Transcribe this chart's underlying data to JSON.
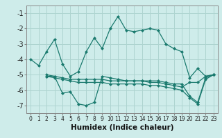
{
  "xlabel": "Humidex (Indice chaleur)",
  "background_color": "#ceecea",
  "grid_color": "#aed4d0",
  "line_color": "#1a7a6e",
  "xlim": [
    -0.5,
    23.5
  ],
  "ylim": [
    -7.5,
    -0.5
  ],
  "yticks": [
    -7,
    -6,
    -5,
    -4,
    -3,
    -2,
    -1
  ],
  "xticks": [
    0,
    1,
    2,
    3,
    4,
    5,
    6,
    7,
    8,
    9,
    10,
    11,
    12,
    13,
    14,
    15,
    16,
    17,
    18,
    19,
    20,
    21,
    22,
    23
  ],
  "line_main": {
    "x": [
      0,
      1,
      2,
      3,
      4,
      5,
      6,
      7,
      8,
      9,
      10,
      11,
      12,
      13,
      14,
      15,
      16,
      17,
      18,
      19,
      20,
      21,
      22,
      23
    ],
    "y": [
      -4.0,
      -4.4,
      -3.5,
      -2.7,
      -4.3,
      -5.1,
      -4.8,
      -3.5,
      -2.6,
      -3.3,
      -2.0,
      -1.2,
      -2.1,
      -2.2,
      -2.1,
      -2.0,
      -2.1,
      -3.0,
      -3.3,
      -3.5,
      -5.2,
      -4.6,
      -5.1,
      -5.0
    ]
  },
  "line_v": {
    "x": [
      2,
      3,
      4,
      5,
      6,
      7,
      8,
      9,
      10,
      11,
      12,
      13,
      14,
      15,
      16,
      17,
      18,
      19,
      20,
      21,
      22,
      23
    ],
    "y": [
      -5.1,
      -5.1,
      -6.2,
      -6.1,
      -6.9,
      -7.0,
      -6.8,
      -5.1,
      -5.2,
      -5.3,
      -5.4,
      -5.4,
      -5.4,
      -5.4,
      -5.4,
      -5.5,
      -5.6,
      -5.6,
      -6.4,
      -6.8,
      -5.2,
      -5.0
    ]
  },
  "line_flat1": {
    "x": [
      2,
      3,
      4,
      5,
      6,
      7,
      8,
      9,
      10,
      11,
      12,
      13,
      14,
      15,
      16,
      17,
      18,
      19,
      20,
      21,
      22,
      23
    ],
    "y": [
      -5.0,
      -5.1,
      -5.2,
      -5.3,
      -5.3,
      -5.3,
      -5.3,
      -5.3,
      -5.4,
      -5.4,
      -5.4,
      -5.4,
      -5.4,
      -5.5,
      -5.5,
      -5.6,
      -5.7,
      -5.8,
      -5.5,
      -5.5,
      -5.1,
      -5.0
    ]
  },
  "line_flat2": {
    "x": [
      2,
      3,
      4,
      5,
      6,
      7,
      8,
      9,
      10,
      11,
      12,
      13,
      14,
      15,
      16,
      17,
      18,
      19,
      20,
      21,
      22,
      23
    ],
    "y": [
      -5.1,
      -5.2,
      -5.3,
      -5.4,
      -5.5,
      -5.5,
      -5.5,
      -5.5,
      -5.6,
      -5.6,
      -5.6,
      -5.6,
      -5.6,
      -5.7,
      -5.7,
      -5.8,
      -5.9,
      -6.0,
      -6.5,
      -6.9,
      -5.3,
      -5.0
    ]
  }
}
